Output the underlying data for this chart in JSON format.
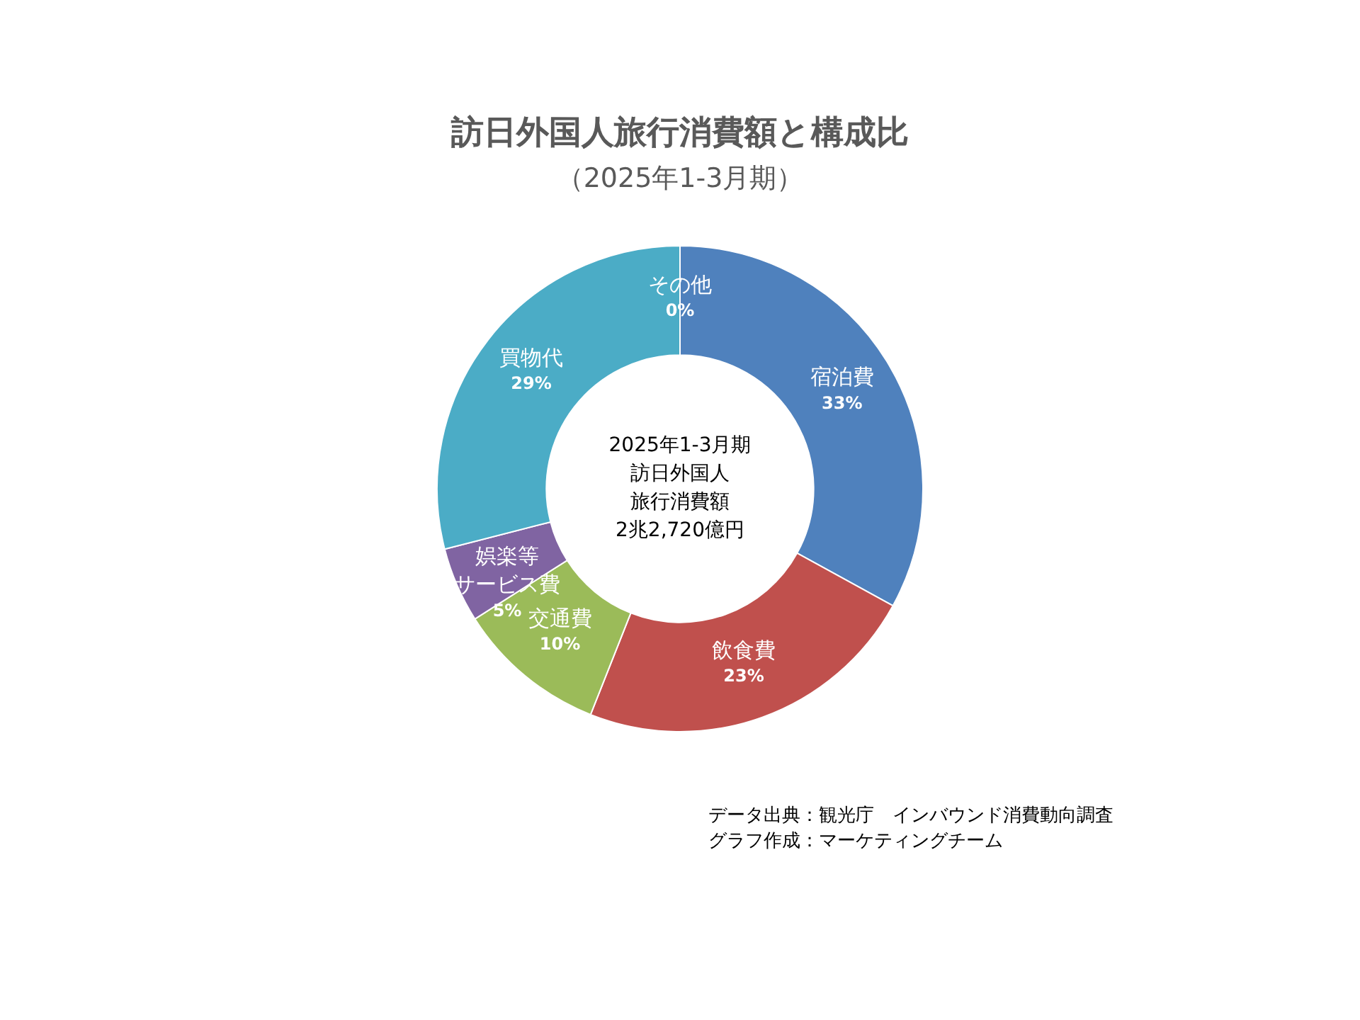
{
  "chart_data": {
    "type": "donut",
    "title": "訪日外国人旅行消費額と構成比",
    "subtitle": "（2025年1-3月期）",
    "categories": [
      "宿泊費",
      "飲食費",
      "交通費",
      "娯楽等サービス費",
      "買物代",
      "その他"
    ],
    "values": [
      33,
      23,
      10,
      5,
      29,
      0
    ],
    "value_labels": [
      "33%",
      "23%",
      "10%",
      "5%",
      "29%",
      "0%"
    ],
    "colors": [
      "#4f81bd",
      "#c0504d",
      "#9bbb59",
      "#8064a2",
      "#4bacc6",
      "#7f7f7f"
    ],
    "legend": false,
    "annotations": [
      "2025年1-3月期",
      "訪日外国人",
      "旅行消費額",
      "2兆2,720億円",
      "データ出典：観光庁　インバウンド消費動向調査",
      "グラフ作成：マーケティングチーム"
    ]
  }
}
